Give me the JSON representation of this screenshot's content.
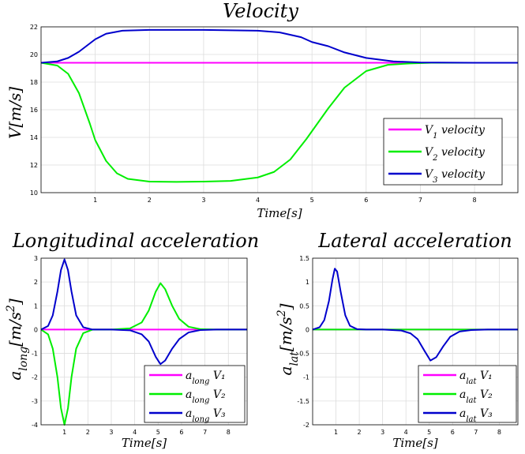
{
  "chart_data": [
    {
      "type": "line",
      "title": "Velocity",
      "xlabel": "Time[s]",
      "ylabel": "V[m/s]",
      "xlim": [
        0,
        8.8
      ],
      "ylim": [
        10,
        22
      ],
      "xticks": [
        "1",
        "2",
        "3",
        "4",
        "5",
        "6",
        "7",
        "8"
      ],
      "yticks": [
        "10",
        "12",
        "14",
        "16",
        "18",
        "20",
        "22"
      ],
      "grid": true,
      "legend_position": "bottom-right",
      "series": [
        {
          "name": "V1 velocity",
          "legend_main": "V",
          "legend_sub": "1",
          "legend_rest": " velocity",
          "color": "#ff00ff",
          "x": [
            0,
            1,
            2,
            3,
            4,
            5,
            6,
            7,
            8,
            8.8
          ],
          "y": [
            19.4,
            19.4,
            19.4,
            19.4,
            19.4,
            19.4,
            19.4,
            19.4,
            19.4,
            19.4
          ]
        },
        {
          "name": "V2 velocity",
          "legend_main": "V",
          "legend_sub": "2",
          "legend_rest": " velocity",
          "color": "#00ee00",
          "x": [
            0,
            0.3,
            0.5,
            0.7,
            0.9,
            1.0,
            1.2,
            1.4,
            1.6,
            2.0,
            2.5,
            3.0,
            3.5,
            4.0,
            4.3,
            4.6,
            4.9,
            5.1,
            5.3,
            5.6,
            6.0,
            6.4,
            6.8,
            7.2,
            8.0,
            8.8
          ],
          "y": [
            19.4,
            19.2,
            18.6,
            17.2,
            15.0,
            13.8,
            12.3,
            11.4,
            11.0,
            10.8,
            10.78,
            10.8,
            10.85,
            11.1,
            11.5,
            12.4,
            13.9,
            15.0,
            16.1,
            17.6,
            18.8,
            19.25,
            19.35,
            19.4,
            19.4,
            19.4
          ]
        },
        {
          "name": "V3 velocity",
          "legend_main": "V",
          "legend_sub": "3",
          "legend_rest": " velocity",
          "color": "#0000cc",
          "x": [
            0,
            0.3,
            0.5,
            0.7,
            0.9,
            1.0,
            1.2,
            1.5,
            2.0,
            3.0,
            4.0,
            4.4,
            4.8,
            5.0,
            5.3,
            5.6,
            6.0,
            6.5,
            7.0,
            8.0,
            8.8
          ],
          "y": [
            19.4,
            19.5,
            19.75,
            20.2,
            20.8,
            21.1,
            21.5,
            21.72,
            21.78,
            21.78,
            21.72,
            21.6,
            21.25,
            20.9,
            20.6,
            20.15,
            19.75,
            19.5,
            19.42,
            19.4,
            19.4
          ]
        }
      ]
    },
    {
      "type": "line",
      "title": "Longitudinal acceleration",
      "xlabel": "Time[s]",
      "ylabel": "a_long[m/s^2]",
      "xlim": [
        0,
        8.8
      ],
      "ylim": [
        -4,
        3
      ],
      "xticks": [
        "1",
        "2",
        "3",
        "4",
        "5",
        "6",
        "7",
        "8"
      ],
      "yticks": [
        "-4",
        "-3",
        "-2",
        "-1",
        "0",
        "1",
        "2",
        "3"
      ],
      "grid": true,
      "legend_position": "bottom-right",
      "series": [
        {
          "name": "a_long V1",
          "legend_main": "a",
          "legend_sub": "long",
          "legend_rest": " V₁",
          "color": "#ff00ff",
          "x": [
            0,
            1,
            2,
            3,
            4,
            5,
            6,
            7,
            8,
            8.8
          ],
          "y": [
            0,
            0,
            0,
            0,
            0,
            0,
            0,
            0,
            0,
            0
          ]
        },
        {
          "name": "a_long V2",
          "legend_main": "a",
          "legend_sub": "long",
          "legend_rest": " V₂",
          "color": "#00ee00",
          "x": [
            0,
            0.3,
            0.5,
            0.7,
            0.85,
            1.0,
            1.15,
            1.3,
            1.5,
            1.8,
            2.2,
            3.0,
            3.8,
            4.3,
            4.6,
            4.9,
            5.1,
            5.3,
            5.6,
            5.9,
            6.3,
            6.8,
            7.5,
            8.8
          ],
          "y": [
            0,
            -0.2,
            -0.8,
            -2.0,
            -3.3,
            -4.0,
            -3.3,
            -2.0,
            -0.8,
            -0.15,
            0,
            0,
            0.05,
            0.3,
            0.8,
            1.6,
            1.95,
            1.7,
            1.0,
            0.45,
            0.12,
            0.02,
            0,
            0
          ]
        },
        {
          "name": "a_long V3",
          "legend_main": "a",
          "legend_sub": "long",
          "legend_rest": " V₃",
          "color": "#0000cc",
          "x": [
            0,
            0.3,
            0.5,
            0.7,
            0.85,
            1.0,
            1.15,
            1.3,
            1.5,
            1.8,
            2.2,
            3.0,
            3.8,
            4.3,
            4.6,
            4.9,
            5.1,
            5.3,
            5.6,
            5.9,
            6.3,
            6.8,
            7.5,
            8.8
          ],
          "y": [
            0,
            0.15,
            0.6,
            1.6,
            2.5,
            2.95,
            2.5,
            1.6,
            0.6,
            0.1,
            0,
            0,
            -0.03,
            -0.2,
            -0.5,
            -1.15,
            -1.45,
            -1.3,
            -0.8,
            -0.4,
            -0.12,
            -0.02,
            0,
            0
          ]
        }
      ]
    },
    {
      "type": "line",
      "title": "Lateral acceleration",
      "xlabel": "Time[s]",
      "ylabel": "a_lat[m/s^2]",
      "xlim": [
        0,
        8.8
      ],
      "ylim": [
        -2,
        1.5
      ],
      "xticks": [
        "1",
        "2",
        "3",
        "4",
        "5",
        "6",
        "7",
        "8"
      ],
      "yticks": [
        "-2",
        "-1.5",
        "-1",
        "-0.5",
        "0",
        "0.5",
        "1",
        "1.5"
      ],
      "grid": true,
      "legend_position": "bottom-right",
      "series": [
        {
          "name": "a_lat V1",
          "legend_main": "a",
          "legend_sub": "lat",
          "legend_rest": " V₁",
          "color": "#ff00ff",
          "x": [
            0,
            1,
            2,
            3,
            4,
            5,
            6,
            7,
            8,
            8.8
          ],
          "y": [
            0,
            0,
            0,
            0,
            0,
            0,
            0,
            0,
            0,
            0
          ]
        },
        {
          "name": "a_lat V2",
          "legend_main": "a",
          "legend_sub": "lat",
          "legend_rest": " V₂",
          "color": "#00ee00",
          "x": [
            0,
            1,
            2,
            3,
            4,
            5,
            6,
            7,
            8,
            8.8
          ],
          "y": [
            0,
            0,
            0,
            0,
            0,
            0,
            0,
            0,
            0,
            0
          ]
        },
        {
          "name": "a_lat V3",
          "legend_main": "a",
          "legend_sub": "lat",
          "legend_rest": " V₃",
          "color": "#0000cc",
          "x": [
            0,
            0.3,
            0.5,
            0.7,
            0.85,
            0.95,
            1.05,
            1.2,
            1.4,
            1.6,
            1.9,
            2.3,
            3.0,
            3.8,
            4.2,
            4.5,
            4.8,
            5.05,
            5.3,
            5.6,
            5.9,
            6.3,
            6.8,
            7.5,
            8.8
          ],
          "y": [
            0,
            0.05,
            0.2,
            0.6,
            1.05,
            1.28,
            1.22,
            0.8,
            0.3,
            0.08,
            0.01,
            0,
            0,
            -0.02,
            -0.08,
            -0.2,
            -0.45,
            -0.65,
            -0.58,
            -0.35,
            -0.15,
            -0.04,
            -0.01,
            0,
            0
          ]
        }
      ]
    }
  ]
}
